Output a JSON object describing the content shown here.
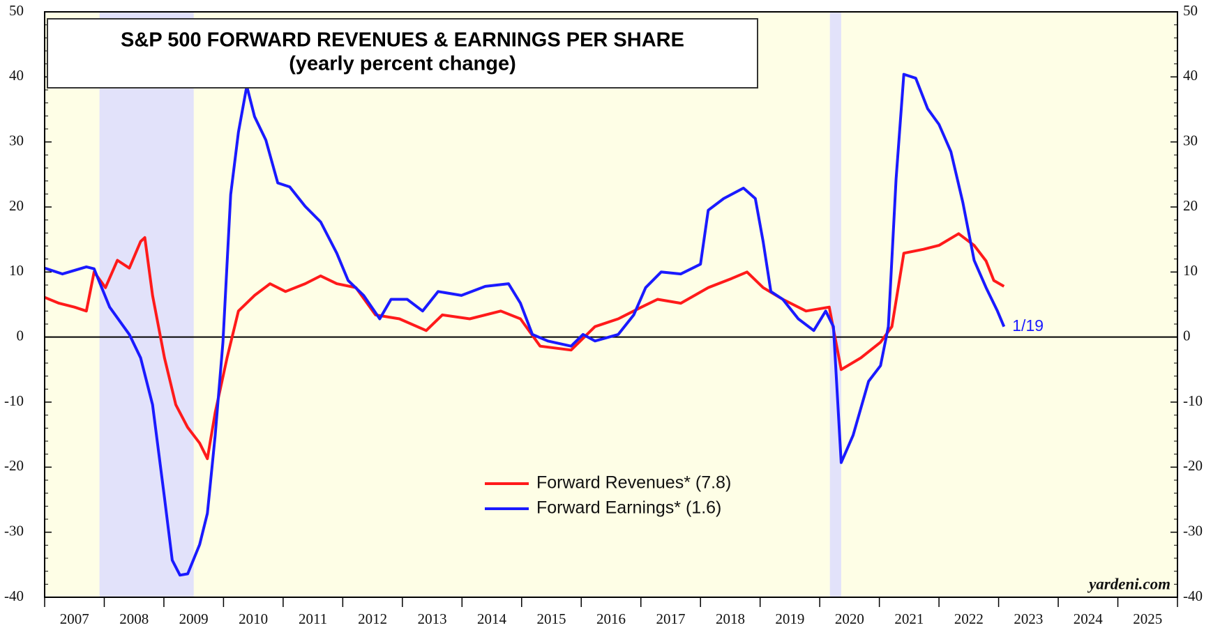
{
  "chart_data": {
    "type": "line",
    "title": "S&P 500 FORWARD REVENUES & EARNINGS PER SHARE",
    "subtitle": "(yearly percent change)",
    "source": "yardeni.com",
    "annotation": "1/19",
    "xlim": [
      2007,
      2026
    ],
    "xticks": [
      2007,
      2008,
      2009,
      2010,
      2011,
      2012,
      2013,
      2014,
      2015,
      2016,
      2017,
      2018,
      2019,
      2020,
      2021,
      2022,
      2023,
      2024,
      2025
    ],
    "ylim": [
      -40,
      50
    ],
    "yticks": [
      -40,
      -30,
      -20,
      -10,
      0,
      10,
      20,
      30,
      40,
      50
    ],
    "reference_line": 0,
    "recessions": [
      [
        2007.92,
        2009.5
      ],
      [
        2020.17,
        2020.36
      ]
    ],
    "recession_color": "#e2e2fa",
    "background": "#fefee6",
    "legend": "bottom-center",
    "series": [
      {
        "name": "Forward Revenues* (7.8)",
        "color": "#ff1a1a",
        "x": [
          2007.0,
          2007.24,
          2007.5,
          2007.7,
          2007.83,
          2008.02,
          2008.22,
          2008.42,
          2008.61,
          2008.68,
          2008.81,
          2009.01,
          2009.2,
          2009.4,
          2009.6,
          2009.73,
          2009.86,
          2010.06,
          2010.25,
          2010.52,
          2010.78,
          2011.04,
          2011.37,
          2011.63,
          2011.9,
          2012.22,
          2012.55,
          2012.95,
          2013.4,
          2013.67,
          2014.13,
          2014.65,
          2014.98,
          2015.31,
          2015.83,
          2016.23,
          2016.62,
          2017.01,
          2017.28,
          2017.67,
          2018.13,
          2018.52,
          2018.78,
          2019.05,
          2019.38,
          2019.77,
          2020.16,
          2020.36,
          2020.69,
          2021.02,
          2021.21,
          2021.41,
          2021.74,
          2022.0,
          2022.33,
          2022.59,
          2022.79,
          2022.92,
          2023.09
        ],
        "values": [
          6.1,
          5.2,
          4.6,
          4.0,
          10.0,
          7.6,
          11.8,
          10.6,
          14.7,
          15.3,
          6.4,
          -3.2,
          -10.4,
          -13.9,
          -16.3,
          -18.7,
          -11.6,
          -3.2,
          4.0,
          6.4,
          8.2,
          7.0,
          8.2,
          9.4,
          8.2,
          7.6,
          3.4,
          2.8,
          1.0,
          3.4,
          2.8,
          4.0,
          2.8,
          -1.4,
          -2.0,
          1.6,
          2.8,
          4.6,
          5.8,
          5.2,
          7.6,
          9.0,
          10.0,
          7.6,
          5.8,
          4.0,
          4.6,
          -5.0,
          -3.2,
          -0.8,
          1.6,
          12.9,
          13.5,
          14.1,
          15.9,
          14.1,
          11.7,
          8.7,
          7.8
        ]
      },
      {
        "name": "Forward Earnings* (1.6)",
        "color": "#1a1aff",
        "x": [
          2007.0,
          2007.3,
          2007.7,
          2007.83,
          2008.09,
          2008.42,
          2008.61,
          2008.81,
          2009.01,
          2009.14,
          2009.27,
          2009.4,
          2009.6,
          2009.73,
          2009.86,
          2009.99,
          2010.12,
          2010.25,
          2010.39,
          2010.52,
          2010.71,
          2010.91,
          2011.11,
          2011.37,
          2011.63,
          2011.9,
          2012.09,
          2012.35,
          2012.62,
          2012.81,
          2013.08,
          2013.34,
          2013.6,
          2013.99,
          2014.39,
          2014.78,
          2014.98,
          2015.18,
          2015.44,
          2015.83,
          2016.03,
          2016.23,
          2016.62,
          2016.88,
          2017.08,
          2017.34,
          2017.67,
          2018.0,
          2018.13,
          2018.39,
          2018.72,
          2018.92,
          2019.05,
          2019.18,
          2019.38,
          2019.64,
          2019.9,
          2020.1,
          2020.23,
          2020.36,
          2020.56,
          2020.82,
          2021.02,
          2021.15,
          2021.28,
          2021.41,
          2021.61,
          2021.81,
          2022.0,
          2022.2,
          2022.4,
          2022.59,
          2022.79,
          2022.98,
          2023.09
        ],
        "values": [
          10.6,
          9.7,
          10.8,
          10.5,
          4.6,
          0.4,
          -3.2,
          -10.4,
          -24.7,
          -34.3,
          -36.6,
          -36.4,
          -31.9,
          -27.1,
          -15.1,
          -0.8,
          21.9,
          31.5,
          38.6,
          33.9,
          30.3,
          23.7,
          23.1,
          20.1,
          17.7,
          12.9,
          8.7,
          6.4,
          2.8,
          5.8,
          5.8,
          4.0,
          7.0,
          6.4,
          7.8,
          8.2,
          5.2,
          0.4,
          -0.6,
          -1.4,
          0.4,
          -0.6,
          0.4,
          3.4,
          7.6,
          10.0,
          9.7,
          11.2,
          19.5,
          21.3,
          22.9,
          21.3,
          14.7,
          7.0,
          5.8,
          2.8,
          1.0,
          4.0,
          1.6,
          -19.3,
          -15.1,
          -6.8,
          -4.4,
          1.6,
          24.3,
          40.4,
          39.8,
          35.1,
          32.7,
          28.5,
          20.7,
          11.8,
          7.6,
          4.0,
          1.6
        ]
      }
    ]
  }
}
